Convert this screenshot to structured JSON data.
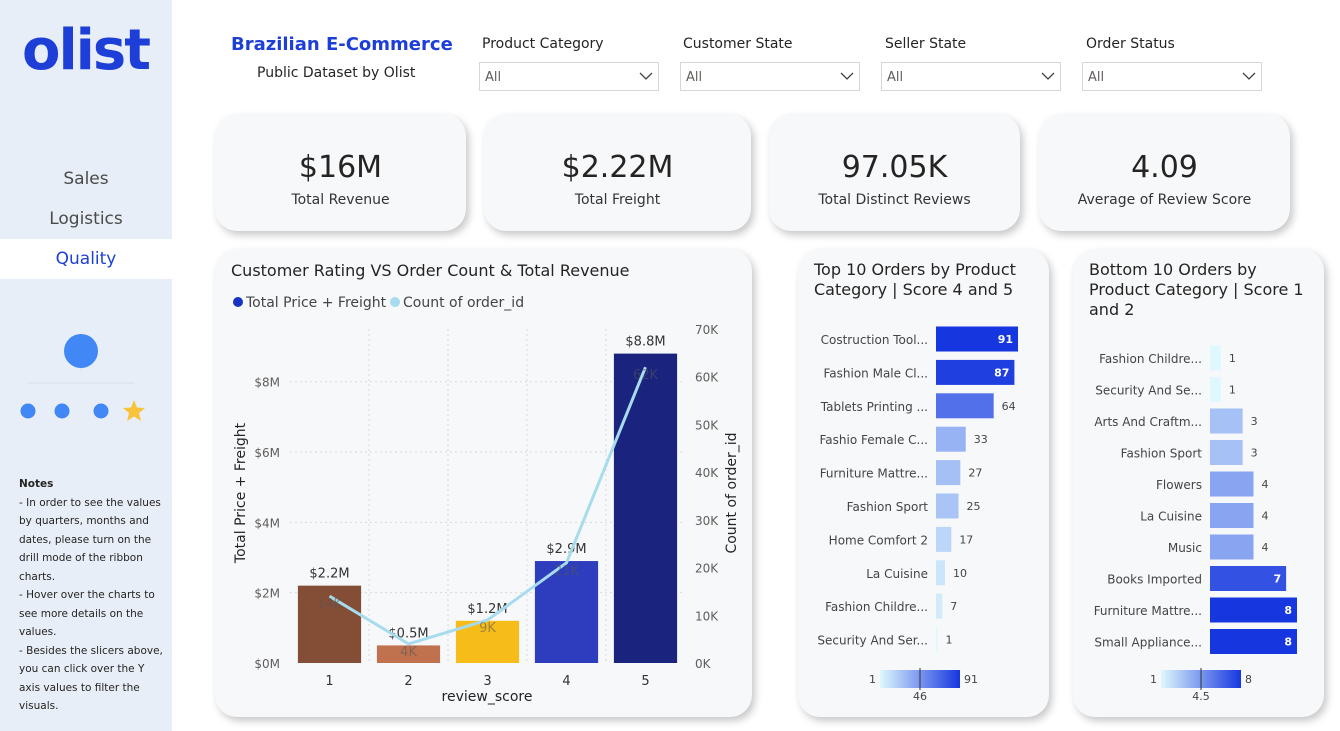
{
  "sidebar": {
    "logo": "olist",
    "nav": [
      "Sales",
      "Logistics",
      "Quality"
    ],
    "active_nav": "Quality",
    "notes_title": "Notes",
    "notes": [
      "- In order to see the values by quarters, months and dates, please turn on the drill mode of the ribbon charts.",
      "- Hover over the charts to see more details on the values.",
      "- Besides the slicers above, you can click over the Y axis values to filter the visuals."
    ]
  },
  "header": {
    "title": "Brazilian E-Commerce",
    "subtitle": "Public Dataset by Olist"
  },
  "slicers": [
    {
      "label": "Product Category",
      "value": "All"
    },
    {
      "label": "Customer State",
      "value": "All"
    },
    {
      "label": "Seller State",
      "value": "All"
    },
    {
      "label": "Order Status",
      "value": "All"
    }
  ],
  "kpis": [
    {
      "value": "$16M",
      "label": "Total Revenue"
    },
    {
      "value": "$2.22M",
      "label": "Total Freight"
    },
    {
      "value": "97.05K",
      "label": "Total Distinct Reviews"
    },
    {
      "value": "4.09",
      "label": "Average of Review Score"
    }
  ],
  "colors": {
    "accent": "#1d3fd8",
    "line": "#a6dced",
    "legend_revenue": "#1833c4"
  },
  "chart_data": [
    {
      "type": "bar",
      "title": "Customer Rating VS Order Count & Total Revenue",
      "legend": [
        "Total Price + Freight",
        "Count of order_id"
      ],
      "legend_position": "top-left",
      "xlabel": "review_score",
      "ylabel": "Total Price + Freight",
      "y2label": "Count of order_id",
      "categories": [
        "1",
        "2",
        "3",
        "4",
        "5"
      ],
      "series": [
        {
          "name": "Total Price + Freight",
          "type": "bar",
          "values": [
            2.2,
            0.5,
            1.2,
            2.9,
            8.8
          ],
          "labels": [
            "$2.2M",
            "$0.5M",
            "$1.2M",
            "$2.9M",
            "$8.8M"
          ],
          "colors": [
            "#834d36",
            "#c0714d",
            "#f6bc19",
            "#2e3dbd",
            "#1a237e"
          ]
        },
        {
          "name": "Count of order_id",
          "type": "line",
          "axis": "secondary",
          "values": [
            14,
            4,
            9,
            21,
            62
          ],
          "labels": [
            "14K",
            "4K",
            "9K",
            "21K",
            "62K"
          ]
        }
      ],
      "ylim": [
        0,
        9.5
      ],
      "yticks": [
        0,
        2,
        4,
        6,
        8
      ],
      "ytick_labels": [
        "$0M",
        "$2M",
        "$4M",
        "$6M",
        "$8M"
      ],
      "y2lim": [
        0,
        70
      ],
      "y2ticks": [
        0,
        10,
        20,
        30,
        40,
        50,
        60,
        70
      ],
      "y2tick_labels": [
        "0K",
        "10K",
        "20K",
        "30K",
        "40K",
        "50K",
        "60K",
        "70K"
      ],
      "grid": true
    },
    {
      "type": "bar",
      "orientation": "horizontal",
      "title": "Top 10 Orders by Product Category | Score 4 and 5",
      "categories": [
        "Costruction Tool...",
        "Fashion Male Cl...",
        "Tablets Printing ...",
        "Fashio Female C...",
        "Furniture Mattre...",
        "Fashion Sport",
        "Home Comfort 2",
        "La Cuisine",
        "Fashion Childre...",
        "Security And Ser..."
      ],
      "values": [
        91,
        87,
        64,
        33,
        27,
        25,
        17,
        10,
        7,
        1
      ],
      "xlim": [
        0,
        91
      ],
      "color_scale": {
        "min": 1,
        "mid": 46,
        "max": 91,
        "min_label": "1",
        "mid_label": "46",
        "max_label": "91",
        "low_color": "#dff8fd",
        "high_color": "#1636e0"
      }
    },
    {
      "type": "bar",
      "orientation": "horizontal",
      "title": "Bottom 10 Orders by Product Category | Score 1 and 2",
      "categories": [
        "Fashion Childre...",
        "Security And Se...",
        "Arts And Craftm...",
        "Fashion Sport",
        "Flowers",
        "La Cuisine",
        "Music",
        "Books Imported",
        "Furniture Mattre...",
        "Small Appliance..."
      ],
      "values": [
        1,
        1,
        3,
        3,
        4,
        4,
        4,
        7,
        8,
        8
      ],
      "xlim": [
        0,
        8
      ],
      "color_scale": {
        "min": 1,
        "mid": 4.5,
        "max": 8,
        "min_label": "1",
        "mid_label": "4.5",
        "max_label": "8",
        "low_color": "#dff8fd",
        "high_color": "#1636e0"
      }
    }
  ]
}
